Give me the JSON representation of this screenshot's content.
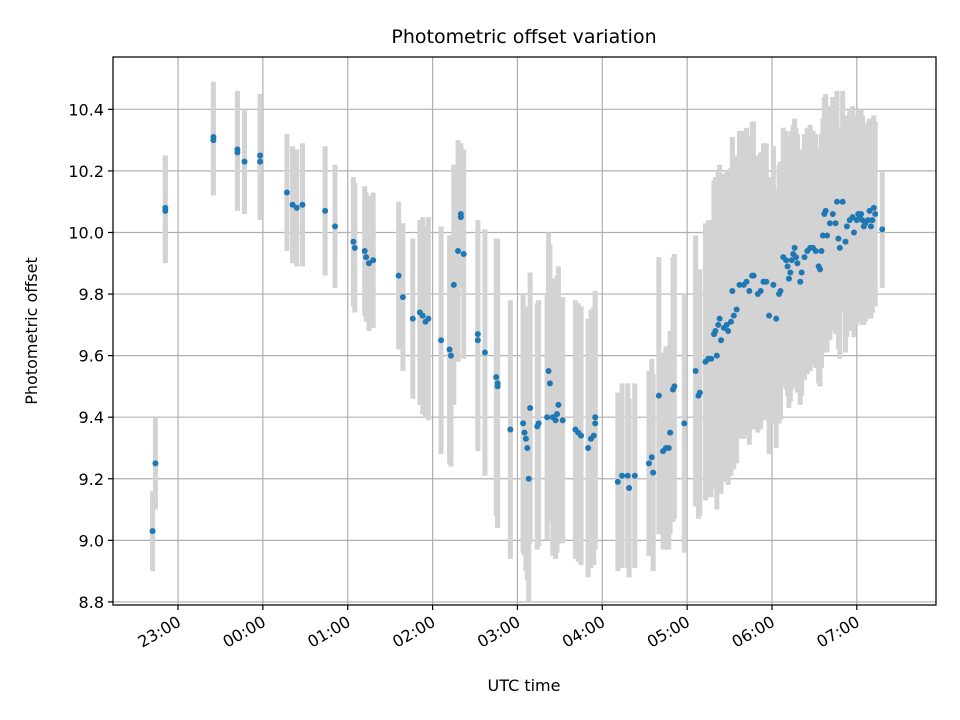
{
  "chart_data": {
    "type": "scatter",
    "title": "Photometric offset variation",
    "xlabel": "UTC time",
    "ylabel": "Photometric offset",
    "x_unit": "UTC time (HH:MM, past midnight)",
    "xlim": [
      "22:14",
      "07:56"
    ],
    "ylim": [
      8.79,
      10.57
    ],
    "x_ticks": [
      "23:00",
      "00:00",
      "01:00",
      "02:00",
      "03:00",
      "04:00",
      "05:00",
      "06:00",
      "07:00"
    ],
    "y_ticks": [
      "8.8",
      "9.0",
      "9.2",
      "9.4",
      "9.6",
      "9.8",
      "10.0",
      "10.2",
      "10.4"
    ],
    "grid": true,
    "colors": {
      "point": "#1f77b4",
      "errorbar": "#d3d3d3",
      "grid": "#b0b0b0"
    },
    "series": [
      {
        "error_bars": true,
        "points": [
          {
            "x": "22:42",
            "y": 9.03,
            "err": 0.13
          },
          {
            "x": "22:44",
            "y": 9.25,
            "err": 0.15
          },
          {
            "x": "22:51",
            "y": 10.07,
            "err": 0.17
          },
          {
            "x": "22:51",
            "y": 10.08,
            "err": 0.17
          },
          {
            "x": "23:25",
            "y": 10.3,
            "err": 0.18
          },
          {
            "x": "23:25",
            "y": 10.31,
            "err": 0.18
          },
          {
            "x": "23:42",
            "y": 10.26,
            "err": 0.19
          },
          {
            "x": "23:42",
            "y": 10.27,
            "err": 0.19
          },
          {
            "x": "23:47",
            "y": 10.23,
            "err": 0.17
          },
          {
            "x": "23:58",
            "y": 10.25,
            "err": 0.2
          },
          {
            "x": "23:58",
            "y": 10.23,
            "err": 0.19
          },
          {
            "x": "00:17",
            "y": 10.13,
            "err": 0.19
          },
          {
            "x": "00:21",
            "y": 10.09,
            "err": 0.19
          },
          {
            "x": "00:24",
            "y": 10.08,
            "err": 0.19
          },
          {
            "x": "00:28",
            "y": 10.09,
            "err": 0.2
          },
          {
            "x": "00:44",
            "y": 10.07,
            "err": 0.21
          },
          {
            "x": "00:51",
            "y": 10.02,
            "err": 0.2
          },
          {
            "x": "01:04",
            "y": 9.97,
            "err": 0.21
          },
          {
            "x": "01:05",
            "y": 9.95,
            "err": 0.21
          },
          {
            "x": "01:12",
            "y": 9.94,
            "err": 0.21
          },
          {
            "x": "01:13",
            "y": 9.92,
            "err": 0.21
          },
          {
            "x": "01:15",
            "y": 9.9,
            "err": 0.22
          },
          {
            "x": "01:18",
            "y": 9.91,
            "err": 0.22
          },
          {
            "x": "01:36",
            "y": 9.86,
            "err": 0.24
          },
          {
            "x": "01:39",
            "y": 9.79,
            "err": 0.24
          },
          {
            "x": "01:46",
            "y": 9.72,
            "err": 0.26
          },
          {
            "x": "01:51",
            "y": 9.74,
            "err": 0.3
          },
          {
            "x": "01:53",
            "y": 9.73,
            "err": 0.32
          },
          {
            "x": "01:55",
            "y": 9.71,
            "err": 0.31
          },
          {
            "x": "01:57",
            "y": 9.72,
            "err": 0.33
          },
          {
            "x": "02:06",
            "y": 9.65,
            "err": 0.37
          },
          {
            "x": "02:12",
            "y": 9.62,
            "err": 0.37
          },
          {
            "x": "02:13",
            "y": 9.6,
            "err": 0.36
          },
          {
            "x": "02:15",
            "y": 9.83,
            "err": 0.39
          },
          {
            "x": "02:18",
            "y": 9.94,
            "err": 0.36
          },
          {
            "x": "02:20",
            "y": 10.05,
            "err": 0.23
          },
          {
            "x": "02:20",
            "y": 10.06,
            "err": 0.23
          },
          {
            "x": "02:22",
            "y": 9.93,
            "err": 0.34
          },
          {
            "x": "02:32",
            "y": 9.67,
            "err": 0.37
          },
          {
            "x": "02:32",
            "y": 9.65,
            "err": 0.36
          },
          {
            "x": "02:37",
            "y": 9.61,
            "err": 0.4
          },
          {
            "x": "02:45",
            "y": 9.53,
            "err": 0.45
          },
          {
            "x": "02:46",
            "y": 9.51,
            "err": 0.47
          },
          {
            "x": "02:46",
            "y": 9.5,
            "err": 0.46
          },
          {
            "x": "02:55",
            "y": 9.36,
            "err": 0.42
          },
          {
            "x": "03:04",
            "y": 9.38,
            "err": 0.42
          },
          {
            "x": "03:05",
            "y": 9.35,
            "err": 0.4
          },
          {
            "x": "03:06",
            "y": 9.33,
            "err": 0.43
          },
          {
            "x": "03:07",
            "y": 9.3,
            "err": 0.43
          },
          {
            "x": "03:08",
            "y": 9.2,
            "err": 0.4
          },
          {
            "x": "03:09",
            "y": 9.43,
            "err": 0.44
          },
          {
            "x": "03:14",
            "y": 9.37,
            "err": 0.4
          },
          {
            "x": "03:15",
            "y": 9.38,
            "err": 0.4
          },
          {
            "x": "03:21",
            "y": 9.4,
            "err": 0.4
          },
          {
            "x": "03:22",
            "y": 9.55,
            "err": 0.45
          },
          {
            "x": "03:23",
            "y": 9.51,
            "err": 0.45
          },
          {
            "x": "03:25",
            "y": 9.4,
            "err": 0.45
          },
          {
            "x": "03:27",
            "y": 9.39,
            "err": 0.45
          },
          {
            "x": "03:28",
            "y": 9.41,
            "err": 0.45
          },
          {
            "x": "03:29",
            "y": 9.44,
            "err": 0.45
          },
          {
            "x": "03:32",
            "y": 9.39,
            "err": 0.4
          },
          {
            "x": "03:41",
            "y": 9.36,
            "err": 0.42
          },
          {
            "x": "03:43",
            "y": 9.35,
            "err": 0.42
          },
          {
            "x": "03:45",
            "y": 9.34,
            "err": 0.42
          },
          {
            "x": "03:50",
            "y": 9.3,
            "err": 0.42
          },
          {
            "x": "03:52",
            "y": 9.33,
            "err": 0.42
          },
          {
            "x": "03:54",
            "y": 9.34,
            "err": 0.42
          },
          {
            "x": "03:55",
            "y": 9.4,
            "err": 0.41
          },
          {
            "x": "03:55",
            "y": 9.38,
            "err": 0.41
          },
          {
            "x": "04:11",
            "y": 9.19,
            "err": 0.29
          },
          {
            "x": "04:14",
            "y": 9.21,
            "err": 0.3
          },
          {
            "x": "04:18",
            "y": 9.21,
            "err": 0.3
          },
          {
            "x": "04:19",
            "y": 9.17,
            "err": 0.29
          },
          {
            "x": "04:23",
            "y": 9.21,
            "err": 0.3
          },
          {
            "x": "04:33",
            "y": 9.25,
            "err": 0.3
          },
          {
            "x": "04:35",
            "y": 9.27,
            "err": 0.32
          },
          {
            "x": "04:36",
            "y": 9.22,
            "err": 0.32
          },
          {
            "x": "04:40",
            "y": 9.47,
            "err": 0.45
          },
          {
            "x": "04:43",
            "y": 9.29,
            "err": 0.32
          },
          {
            "x": "04:45",
            "y": 9.3,
            "err": 0.33
          },
          {
            "x": "04:47",
            "y": 9.3,
            "err": 0.33
          },
          {
            "x": "04:48",
            "y": 9.35,
            "err": 0.33
          },
          {
            "x": "04:50",
            "y": 9.49,
            "err": 0.43
          },
          {
            "x": "04:51",
            "y": 9.5,
            "err": 0.43
          },
          {
            "x": "04:58",
            "y": 9.38,
            "err": 0.42
          },
          {
            "x": "05:06",
            "y": 9.55,
            "err": 0.44
          },
          {
            "x": "05:08",
            "y": 9.47,
            "err": 0.4
          },
          {
            "x": "05:09",
            "y": 9.48,
            "err": 0.4
          },
          {
            "x": "05:13",
            "y": 9.58,
            "err": 0.45
          },
          {
            "x": "05:15",
            "y": 9.59,
            "err": 0.45
          },
          {
            "x": "05:17",
            "y": 9.59,
            "err": 0.45
          },
          {
            "x": "05:19",
            "y": 9.67,
            "err": 0.5
          },
          {
            "x": "05:20",
            "y": 9.68,
            "err": 0.5
          },
          {
            "x": "05:21",
            "y": 9.6,
            "err": 0.5
          },
          {
            "x": "05:22",
            "y": 9.7,
            "err": 0.5
          },
          {
            "x": "05:23",
            "y": 9.72,
            "err": 0.5
          },
          {
            "x": "05:24",
            "y": 9.65,
            "err": 0.5
          },
          {
            "x": "05:26",
            "y": 9.69,
            "err": 0.5
          },
          {
            "x": "05:28",
            "y": 9.7,
            "err": 0.5
          },
          {
            "x": "05:29",
            "y": 9.68,
            "err": 0.5
          },
          {
            "x": "05:31",
            "y": 9.71,
            "err": 0.5
          },
          {
            "x": "05:32",
            "y": 9.81,
            "err": 0.5
          },
          {
            "x": "05:33",
            "y": 9.73,
            "err": 0.5
          },
          {
            "x": "05:35",
            "y": 9.75,
            "err": 0.5
          },
          {
            "x": "05:37",
            "y": 9.83,
            "err": 0.5
          },
          {
            "x": "05:40",
            "y": 9.83,
            "err": 0.5
          },
          {
            "x": "05:42",
            "y": 9.84,
            "err": 0.5
          },
          {
            "x": "05:44",
            "y": 9.81,
            "err": 0.5
          },
          {
            "x": "05:46",
            "y": 9.86,
            "err": 0.5
          },
          {
            "x": "05:47",
            "y": 9.86,
            "err": 0.5
          },
          {
            "x": "05:50",
            "y": 9.8,
            "err": 0.45
          },
          {
            "x": "05:52",
            "y": 9.81,
            "err": 0.45
          },
          {
            "x": "05:54",
            "y": 9.84,
            "err": 0.45
          },
          {
            "x": "05:56",
            "y": 9.84,
            "err": 0.45
          },
          {
            "x": "05:58",
            "y": 9.73,
            "err": 0.45
          },
          {
            "x": "06:01",
            "y": 9.83,
            "err": 0.45
          },
          {
            "x": "06:03",
            "y": 9.72,
            "err": 0.42
          },
          {
            "x": "06:05",
            "y": 9.8,
            "err": 0.42
          },
          {
            "x": "06:06",
            "y": 9.81,
            "err": 0.42
          },
          {
            "x": "06:08",
            "y": 9.92,
            "err": 0.42
          },
          {
            "x": "06:10",
            "y": 9.91,
            "err": 0.42
          },
          {
            "x": "06:11",
            "y": 9.89,
            "err": 0.42
          },
          {
            "x": "06:12",
            "y": 9.85,
            "err": 0.42
          },
          {
            "x": "06:13",
            "y": 9.87,
            "err": 0.42
          },
          {
            "x": "06:14",
            "y": 9.91,
            "err": 0.42
          },
          {
            "x": "06:15",
            "y": 9.93,
            "err": 0.42
          },
          {
            "x": "06:16",
            "y": 9.95,
            "err": 0.42
          },
          {
            "x": "06:17",
            "y": 9.92,
            "err": 0.42
          },
          {
            "x": "06:18",
            "y": 9.9,
            "err": 0.42
          },
          {
            "x": "06:20",
            "y": 9.84,
            "err": 0.4
          },
          {
            "x": "06:21",
            "y": 9.87,
            "err": 0.4
          },
          {
            "x": "06:23",
            "y": 9.92,
            "err": 0.4
          },
          {
            "x": "06:25",
            "y": 9.94,
            "err": 0.4
          },
          {
            "x": "06:27",
            "y": 9.95,
            "err": 0.4
          },
          {
            "x": "06:29",
            "y": 9.95,
            "err": 0.38
          },
          {
            "x": "06:31",
            "y": 9.94,
            "err": 0.38
          },
          {
            "x": "06:33",
            "y": 9.89,
            "err": 0.38
          },
          {
            "x": "06:34",
            "y": 9.88,
            "err": 0.38
          },
          {
            "x": "06:35",
            "y": 9.94,
            "err": 0.38
          },
          {
            "x": "06:36",
            "y": 9.99,
            "err": 0.38
          },
          {
            "x": "06:37",
            "y": 10.06,
            "err": 0.38
          },
          {
            "x": "06:38",
            "y": 10.07,
            "err": 0.38
          },
          {
            "x": "06:39",
            "y": 9.99,
            "err": 0.38
          },
          {
            "x": "06:41",
            "y": 10.03,
            "err": 0.38
          },
          {
            "x": "06:43",
            "y": 10.06,
            "err": 0.38
          },
          {
            "x": "06:45",
            "y": 10.03,
            "err": 0.36
          },
          {
            "x": "06:46",
            "y": 10.1,
            "err": 0.36
          },
          {
            "x": "06:47",
            "y": 9.98,
            "err": 0.36
          },
          {
            "x": "06:48",
            "y": 9.95,
            "err": 0.36
          },
          {
            "x": "06:50",
            "y": 10.1,
            "err": 0.36
          },
          {
            "x": "06:52",
            "y": 9.97,
            "err": 0.36
          },
          {
            "x": "06:53",
            "y": 10.02,
            "err": 0.36
          },
          {
            "x": "06:55",
            "y": 10.04,
            "err": 0.36
          },
          {
            "x": "06:57",
            "y": 10.05,
            "err": 0.36
          },
          {
            "x": "06:58",
            "y": 10.0,
            "err": 0.34
          },
          {
            "x": "07:00",
            "y": 10.04,
            "err": 0.34
          },
          {
            "x": "07:01",
            "y": 10.06,
            "err": 0.34
          },
          {
            "x": "07:02",
            "y": 10.05,
            "err": 0.34
          },
          {
            "x": "07:03",
            "y": 10.06,
            "err": 0.34
          },
          {
            "x": "07:04",
            "y": 10.04,
            "err": 0.34
          },
          {
            "x": "07:05",
            "y": 10.02,
            "err": 0.32
          },
          {
            "x": "07:06",
            "y": 10.03,
            "err": 0.32
          },
          {
            "x": "07:08",
            "y": 10.04,
            "err": 0.32
          },
          {
            "x": "07:09",
            "y": 10.07,
            "err": 0.3
          },
          {
            "x": "07:10",
            "y": 10.02,
            "err": 0.3
          },
          {
            "x": "07:11",
            "y": 10.04,
            "err": 0.3
          },
          {
            "x": "07:12",
            "y": 10.08,
            "err": 0.3
          },
          {
            "x": "07:13",
            "y": 10.06,
            "err": 0.3
          },
          {
            "x": "07:18",
            "y": 10.01,
            "err": 0.19
          }
        ]
      }
    ]
  }
}
